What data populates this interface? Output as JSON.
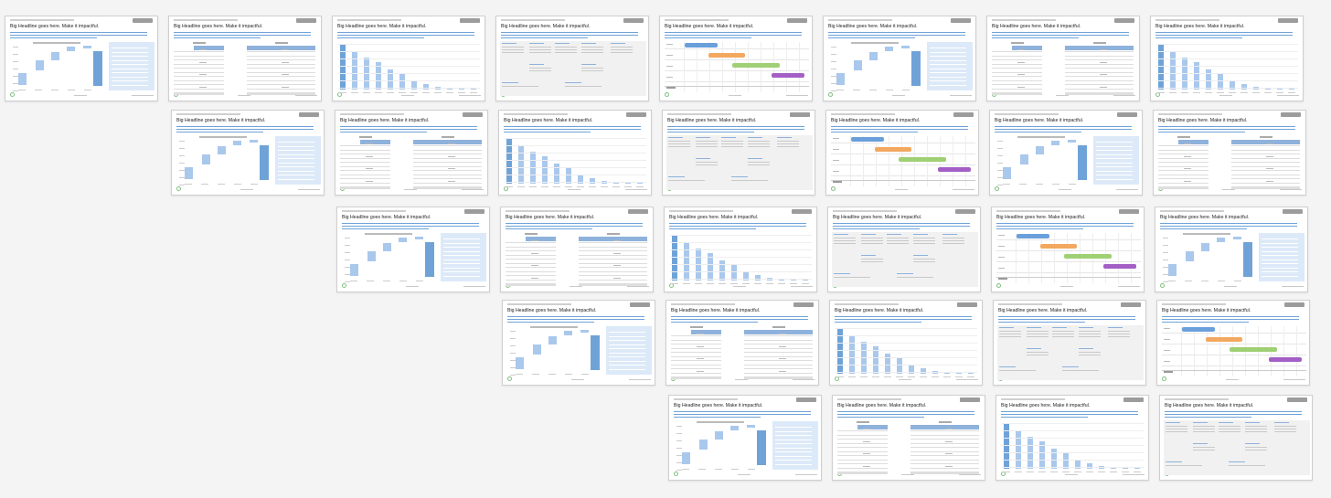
{
  "headline": "Big Headline goes here. Make it impactful.",
  "colors": {
    "background": "#f4f4f4",
    "slide_bg": "#ffffff",
    "accent_blue": "#6fa3d8",
    "light_blue": "#a9c8ec",
    "panel_blue": "#dce9f8",
    "table_header": "#8eb2dc",
    "gantt": [
      "#6a9fdc",
      "#f3a860",
      "#9fd074",
      "#a35fc6"
    ]
  },
  "slide_types": [
    "waterfall",
    "table",
    "bars",
    "text-grid",
    "gantt"
  ],
  "rows": [
    [
      "waterfall",
      "table",
      "bars",
      "text-grid",
      "gantt",
      "waterfall",
      "table",
      "bars"
    ],
    [
      "waterfall",
      "table",
      "bars",
      "text-grid",
      "gantt",
      "waterfall",
      "table"
    ],
    [
      "waterfall",
      "table",
      "bars",
      "text-grid",
      "gantt",
      "waterfall"
    ],
    [
      "waterfall",
      "table",
      "bars",
      "text-grid",
      "gantt"
    ],
    [
      "waterfall",
      "table",
      "bars",
      "text-grid"
    ]
  ]
}
